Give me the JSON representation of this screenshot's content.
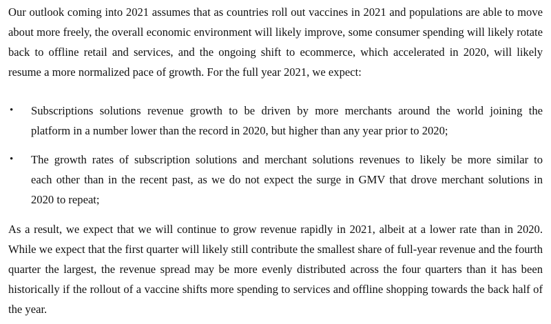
{
  "paragraph1": [
    "Our outlook coming into 2021 assumes that as countries roll out vaccines in 2021 and populations are able to move",
    "about more freely, the overall economic environment will likely improve, some consumer spending will likely rotate",
    "back to offline retail and services, and the ongoing shift to ecommerce, which accelerated in 2020, will likely",
    "resume a more normalized pace of growth. For the full year 2021, we expect:"
  ],
  "bullets": [
    {
      "marker": "•",
      "lines": [
        "Subscriptions solutions revenue growth to be driven by more merchants around the world joining the",
        "platform in a number lower than the record in 2020, but higher than any year prior to 2020;"
      ]
    },
    {
      "marker": "•",
      "lines": [
        "The growth rates of subscription solutions and merchant solutions revenues to likely be more similar to",
        "each other than in the recent past, as we do not expect the surge in GMV that drove merchant solutions in",
        "2020 to repeat;"
      ]
    }
  ],
  "paragraph2": [
    "As a result, we expect that we will continue to grow revenue rapidly in 2021, albeit at a lower rate than in 2020.",
    "While we expect that the first quarter will likely still contribute the smallest share of full-year revenue and the fourth",
    "quarter the largest, the revenue spread may be more evenly distributed across the four quarters than it has been",
    "historically if the rollout of a vaccine shifts more spending to services and offline shopping towards the back half of",
    "the year."
  ]
}
